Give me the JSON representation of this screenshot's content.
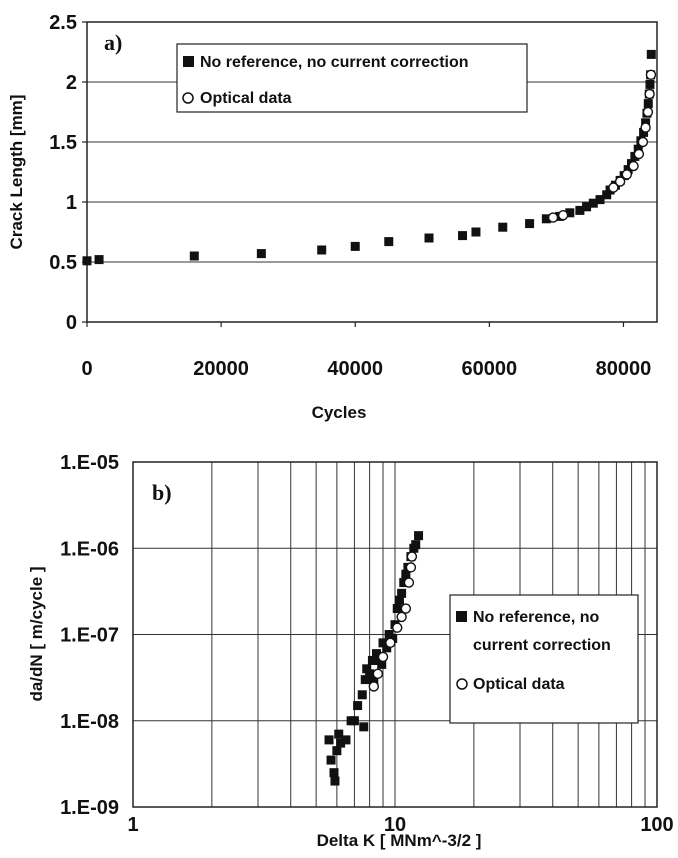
{
  "chart_data": [
    {
      "type": "scatter",
      "panel_label": "a)",
      "title": "",
      "xlabel": "Cycles",
      "ylabel": "Crack Length [mm]",
      "xlim": [
        0,
        85000
      ],
      "ylim": [
        0,
        2.5
      ],
      "xticks": [
        "0",
        "20000",
        "40000",
        "60000",
        "80000"
      ],
      "yticks": [
        "0",
        "0.5",
        "1",
        "1.5",
        "2",
        "2.5"
      ],
      "grid": "horizontal",
      "legend_position": "top-center",
      "series": [
        {
          "name": "No reference, no current correction",
          "marker": "filled-square",
          "points": [
            [
              0,
              0.51
            ],
            [
              1800,
              0.52
            ],
            [
              16000,
              0.55
            ],
            [
              26000,
              0.57
            ],
            [
              35000,
              0.6
            ],
            [
              40000,
              0.63
            ],
            [
              45000,
              0.67
            ],
            [
              51000,
              0.7
            ],
            [
              56000,
              0.72
            ],
            [
              58000,
              0.75
            ],
            [
              62000,
              0.79
            ],
            [
              66000,
              0.82
            ],
            [
              68500,
              0.86
            ],
            [
              70500,
              0.88
            ],
            [
              72000,
              0.91
            ],
            [
              73500,
              0.93
            ],
            [
              74500,
              0.96
            ],
            [
              75500,
              0.99
            ],
            [
              76500,
              1.02
            ],
            [
              77500,
              1.06
            ],
            [
              78000,
              1.1
            ],
            [
              78800,
              1.14
            ],
            [
              79500,
              1.18
            ],
            [
              80100,
              1.22
            ],
            [
              80700,
              1.27
            ],
            [
              81200,
              1.32
            ],
            [
              81700,
              1.38
            ],
            [
              82200,
              1.44
            ],
            [
              82600,
              1.51
            ],
            [
              83000,
              1.58
            ],
            [
              83300,
              1.66
            ],
            [
              83500,
              1.74
            ],
            [
              83700,
              1.82
            ],
            [
              83850,
              1.9
            ],
            [
              83950,
              1.98
            ],
            [
              84050,
              2.06
            ],
            [
              84150,
              2.23
            ]
          ]
        },
        {
          "name": "Optical data",
          "marker": "open-circle",
          "points": [
            [
              69500,
              0.87
            ],
            [
              71000,
              0.89
            ],
            [
              78500,
              1.12
            ],
            [
              79500,
              1.17
            ],
            [
              80500,
              1.23
            ],
            [
              81500,
              1.3
            ],
            [
              82300,
              1.4
            ],
            [
              82900,
              1.5
            ],
            [
              83300,
              1.62
            ],
            [
              83650,
              1.75
            ],
            [
              83900,
              1.9
            ],
            [
              84100,
              2.06
            ]
          ]
        }
      ]
    },
    {
      "type": "scatter",
      "panel_label": "b)",
      "title": "",
      "xlabel": "Delta K  [ MNm^-3/2 ]",
      "ylabel": "da/dN  [ m/cycle ]",
      "xscale": "log",
      "yscale": "log",
      "xlim": [
        1,
        100
      ],
      "ylim": [
        1e-09,
        1e-05
      ],
      "xticks": [
        "1",
        "10",
        "100"
      ],
      "yticks": [
        "1.E-09",
        "1.E-08",
        "1.E-07",
        "1.E-06",
        "1.E-05"
      ],
      "grid": "major and minor",
      "legend_position": "right",
      "series": [
        {
          "name": "No reference, no current correction",
          "marker": "filled-square",
          "points": [
            [
              5.6,
              6e-09
            ],
            [
              5.7,
              3.5e-09
            ],
            [
              5.85,
              2.5e-09
            ],
            [
              5.9,
              2e-09
            ],
            [
              6.0,
              4.5e-09
            ],
            [
              6.1,
              7e-09
            ],
            [
              6.2,
              5.5e-09
            ],
            [
              6.5,
              6e-09
            ],
            [
              6.8,
              1e-08
            ],
            [
              7.0,
              1e-08
            ],
            [
              7.2,
              1.5e-08
            ],
            [
              7.5,
              2e-08
            ],
            [
              7.6,
              8.5e-09
            ],
            [
              7.7,
              3e-08
            ],
            [
              7.8,
              4e-08
            ],
            [
              8.0,
              3.5e-08
            ],
            [
              8.2,
              5e-08
            ],
            [
              8.3,
              3e-08
            ],
            [
              8.5,
              6e-08
            ],
            [
              8.7,
              5e-08
            ],
            [
              8.9,
              4.5e-08
            ],
            [
              9.0,
              8e-08
            ],
            [
              9.3,
              7e-08
            ],
            [
              9.5,
              1e-07
            ],
            [
              9.8,
              9e-08
            ],
            [
              10.0,
              1.3e-07
            ],
            [
              10.2,
              2e-07
            ],
            [
              10.4,
              2.5e-07
            ],
            [
              10.6,
              3e-07
            ],
            [
              10.8,
              4e-07
            ],
            [
              11.0,
              5e-07
            ],
            [
              11.2,
              6e-07
            ],
            [
              11.5,
              8e-07
            ],
            [
              11.8,
              1e-06
            ],
            [
              12.0,
              1.1e-06
            ],
            [
              12.3,
              1.4e-06
            ]
          ]
        },
        {
          "name": "Optical data",
          "marker": "open-circle",
          "points": [
            [
              8.3,
              2.5e-08
            ],
            [
              8.6,
              3.5e-08
            ],
            [
              9.0,
              5.5e-08
            ],
            [
              9.6,
              8e-08
            ],
            [
              10.2,
              1.2e-07
            ],
            [
              10.6,
              1.6e-07
            ],
            [
              11.0,
              2e-07
            ],
            [
              11.3,
              4e-07
            ],
            [
              11.5,
              6e-07
            ],
            [
              11.6,
              8e-07
            ]
          ]
        }
      ]
    }
  ]
}
